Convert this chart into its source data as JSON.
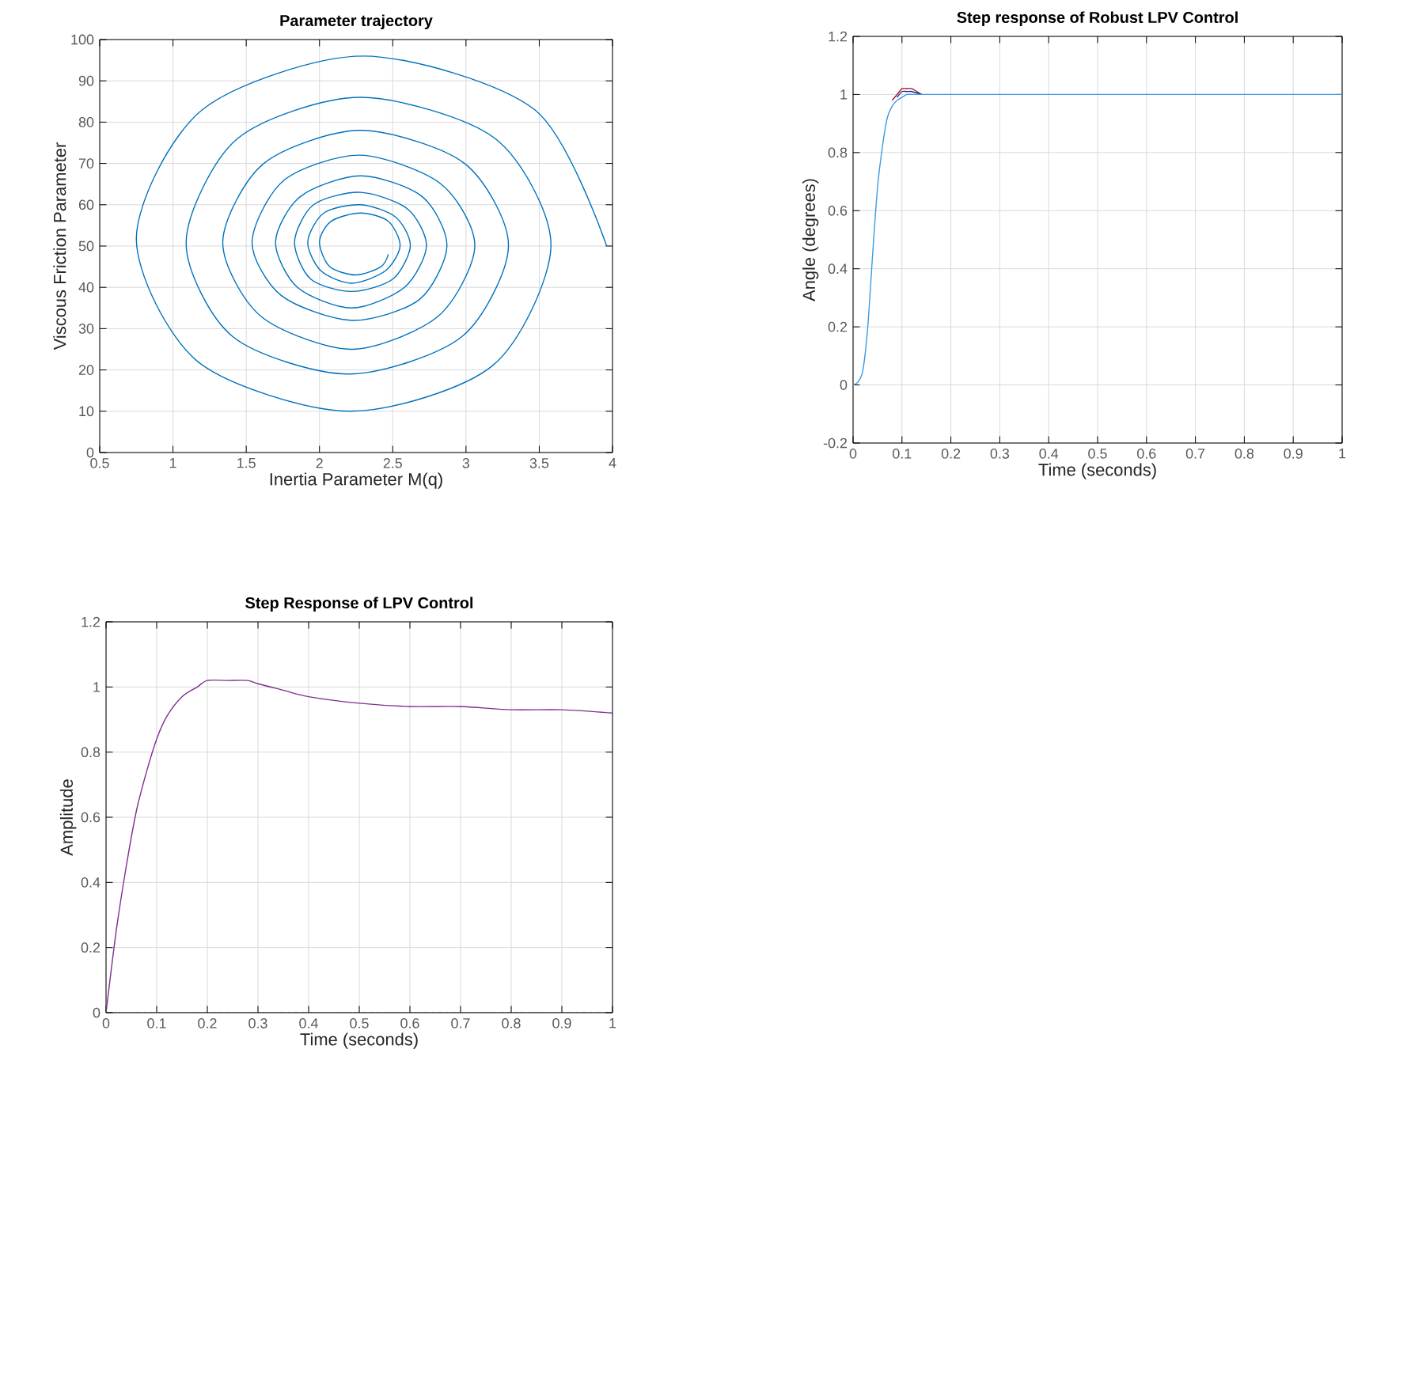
{
  "chart_data": [
    {
      "type": "line",
      "title": "Parameter trajectory",
      "xlabel": "Inertia Parameter M(q)",
      "ylabel": "Viscous Friction Parameter",
      "xlim": [
        0.5,
        4
      ],
      "xticks": [
        0.5,
        1,
        1.5,
        2,
        2.5,
        3,
        3.5,
        4
      ],
      "ylim": [
        0,
        100
      ],
      "yticks": [
        0,
        10,
        20,
        30,
        40,
        50,
        60,
        70,
        80,
        90,
        100
      ],
      "grid": true,
      "series": [
        {
          "color": "#0072bd",
          "x": [
            3.96,
            3.47,
            2.3,
            1.2,
            0.75,
            1.17,
            2.2,
            3.18,
            3.58,
            3.2,
            2.28,
            1.44,
            1.09,
            1.41,
            2.2,
            2.97,
            3.29,
            2.99,
            2.28,
            1.62,
            1.34,
            1.6,
            2.22,
            2.81,
            3.06,
            2.83,
            2.28,
            1.76,
            1.54,
            1.74,
            2.22,
            2.68,
            2.87,
            2.7,
            2.28,
            1.87,
            1.7,
            1.85,
            2.22,
            2.58,
            2.73,
            2.6,
            2.28,
            1.96,
            1.83,
            1.94,
            2.22,
            2.5,
            2.62,
            2.52,
            2.28,
            2.03,
            1.92,
            2.01,
            2.22,
            2.45,
            2.55,
            2.47,
            2.28,
            2.08,
            2.0,
            2.07,
            2.25,
            2.42,
            2.47
          ],
          "values": [
            50,
            83,
            96,
            83,
            52,
            22,
            10,
            21,
            50,
            76,
            86,
            76,
            51,
            28,
            19,
            28,
            50,
            70,
            78,
            70,
            51,
            33,
            25,
            33,
            50,
            65,
            72,
            66,
            51,
            38,
            32,
            37,
            50,
            62,
            67,
            62,
            51,
            40,
            35,
            40,
            50,
            59,
            63,
            60,
            51,
            42,
            39,
            42,
            50,
            57,
            60,
            58,
            51,
            44,
            41,
            44,
            50,
            56,
            58,
            56,
            51,
            45,
            43,
            45,
            48
          ]
        }
      ]
    },
    {
      "type": "line",
      "title": "Step response of Robust LPV Control",
      "xlabel": "Time (seconds)",
      "ylabel": "Angle (degrees)",
      "xlim": [
        0,
        1
      ],
      "xticks": [
        0,
        0.1,
        0.2,
        0.3,
        0.4,
        0.5,
        0.6,
        0.7,
        0.8,
        0.9,
        1
      ],
      "ylim": [
        -0.2,
        1.2
      ],
      "yticks": [
        -0.2,
        0,
        0.2,
        0.4,
        0.6,
        0.8,
        1,
        1.2
      ],
      "grid": true,
      "x": [
        0,
        0.01,
        0.02,
        0.03,
        0.04,
        0.05,
        0.06,
        0.07,
        0.08,
        0.09,
        0.1,
        0.11,
        0.12,
        0.14,
        0.16,
        0.2,
        1
      ],
      "series": [
        {
          "color": "#a2142f",
          "values": [
            null,
            null,
            null,
            null,
            null,
            null,
            null,
            null,
            0.98,
            1.0,
            1.02,
            1.02,
            1.02,
            1.0,
            null,
            null,
            null
          ]
        },
        {
          "color": "#1f2f8f",
          "values": [
            null,
            null,
            null,
            null,
            null,
            null,
            null,
            null,
            null,
            0.99,
            1.01,
            1.01,
            1.01,
            1.0,
            null,
            null,
            null
          ]
        },
        {
          "color": "#3d9be0",
          "values": [
            0,
            0.01,
            0.05,
            0.2,
            0.45,
            0.68,
            0.82,
            0.92,
            0.96,
            0.98,
            0.99,
            1.0,
            1.0,
            1.0,
            1.0,
            1.0,
            1.0
          ]
        }
      ]
    },
    {
      "type": "line",
      "title": "Step Response of LPV Control",
      "xlabel": "Time (seconds)",
      "ylabel": "Amplitude",
      "xlim": [
        0,
        1
      ],
      "xticks": [
        0,
        0.1,
        0.2,
        0.3,
        0.4,
        0.5,
        0.6,
        0.7,
        0.8,
        0.9,
        1
      ],
      "ylim": [
        0,
        1.2
      ],
      "yticks": [
        0,
        0.2,
        0.4,
        0.6,
        0.8,
        1,
        1.2
      ],
      "grid": true,
      "x": [
        0,
        0.02,
        0.04,
        0.06,
        0.08,
        0.1,
        0.12,
        0.15,
        0.18,
        0.2,
        0.24,
        0.28,
        0.3,
        0.35,
        0.4,
        0.5,
        0.6,
        0.7,
        0.8,
        0.9,
        1
      ],
      "ref_lines": [
        {
          "axis": "y",
          "value": 0,
          "color": "#000000",
          "line_style": "dotted"
        }
      ],
      "series": [
        {
          "color": "#7e2f8e",
          "values": [
            0,
            0.25,
            0.45,
            0.62,
            0.74,
            0.84,
            0.91,
            0.97,
            1.0,
            1.02,
            1.02,
            1.02,
            1.01,
            0.99,
            0.97,
            0.95,
            0.94,
            0.94,
            0.93,
            0.93,
            0.92
          ]
        }
      ]
    }
  ]
}
